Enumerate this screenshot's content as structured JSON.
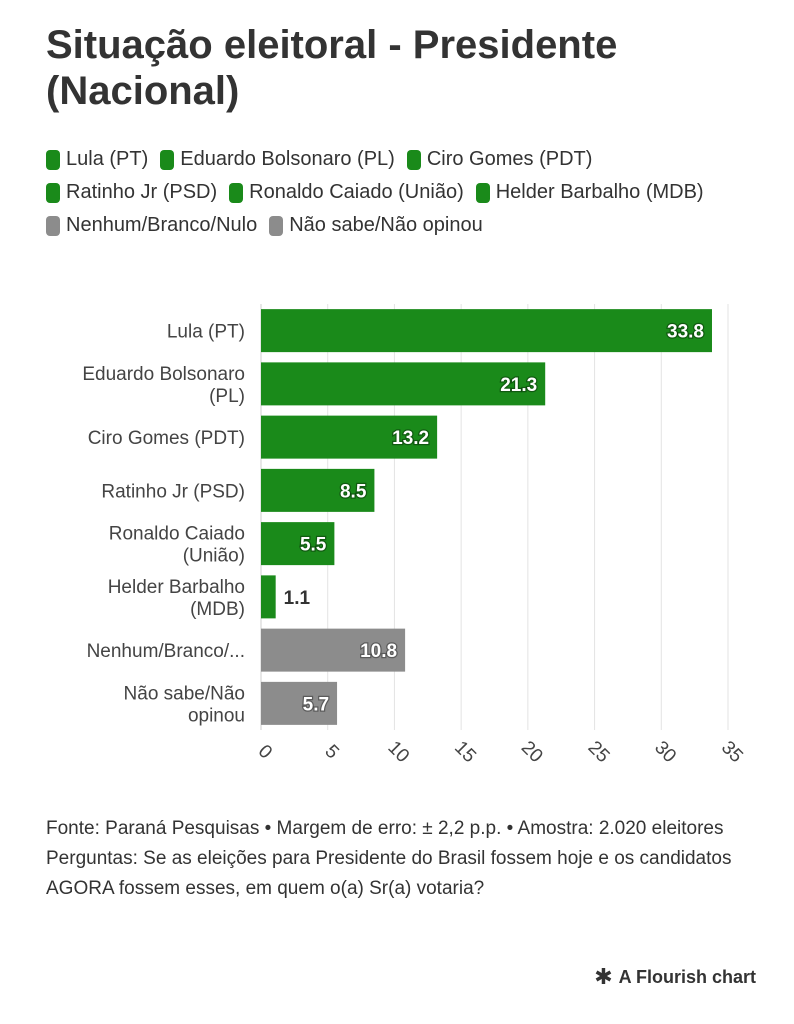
{
  "title": "Situação eleitoral - Presidente (Nacional)",
  "legend": [
    {
      "label": "Lula (PT)",
      "color": "#1a8a1a"
    },
    {
      "label": "Eduardo Bolsonaro (PL)",
      "color": "#1a8a1a"
    },
    {
      "label": "Ciro Gomes (PDT)",
      "color": "#1a8a1a"
    },
    {
      "label": "Ratinho Jr (PSD)",
      "color": "#1a8a1a"
    },
    {
      "label": "Ronaldo Caiado (União)",
      "color": "#1a8a1a"
    },
    {
      "label": "Helder Barbalho (MDB)",
      "color": "#1a8a1a"
    },
    {
      "label": "Nenhum/Branco/Nulo",
      "color": "#8c8c8c"
    },
    {
      "label": "Não sabe/Não opinou",
      "color": "#8c8c8c"
    }
  ],
  "chart_data": {
    "type": "bar",
    "orientation": "horizontal",
    "categories": [
      {
        "lines": [
          "Lula (PT)"
        ]
      },
      {
        "lines": [
          "Eduardo Bolsonaro",
          "(PL)"
        ]
      },
      {
        "lines": [
          "Ciro Gomes (PDT)"
        ]
      },
      {
        "lines": [
          "Ratinho Jr (PSD)"
        ]
      },
      {
        "lines": [
          "Ronaldo Caiado",
          "(União)"
        ]
      },
      {
        "lines": [
          "Helder Barbalho",
          "(MDB)"
        ]
      },
      {
        "lines": [
          "Nenhum/Branco/..."
        ]
      },
      {
        "lines": [
          "Não sabe/Não",
          "opinou"
        ]
      }
    ],
    "values": [
      33.8,
      21.3,
      13.2,
      8.5,
      5.5,
      1.1,
      10.8,
      5.7
    ],
    "value_labels": [
      "33.8",
      "21.3",
      "13.2",
      "8.5",
      "5.5",
      "1.1",
      "10.8",
      "5.7"
    ],
    "colors": [
      "#1a8a1a",
      "#1a8a1a",
      "#1a8a1a",
      "#1a8a1a",
      "#1a8a1a",
      "#1a8a1a",
      "#8c8c8c",
      "#8c8c8c"
    ],
    "xlim": [
      0,
      35
    ],
    "xticks": [
      0,
      5,
      10,
      15,
      20,
      25,
      30,
      35
    ],
    "xtick_labels": [
      "0",
      "5",
      "10",
      "15",
      "20",
      "25",
      "30",
      "35"
    ],
    "grid": true,
    "legend_position": "top"
  },
  "footer": {
    "source": "Fonte: Paraná Pesquisas • Margem de erro: ± 2,2 p.p. • Amostra: 2.020 eleitores",
    "question": "Perguntas: Se as eleições para Presidente do Brasil fossem hoje e os candidatos AGORA fossem esses, em quem o(a) Sr(a) votaria?"
  },
  "brand": {
    "icon": "asterisk-icon",
    "label": "A Flourish chart"
  }
}
